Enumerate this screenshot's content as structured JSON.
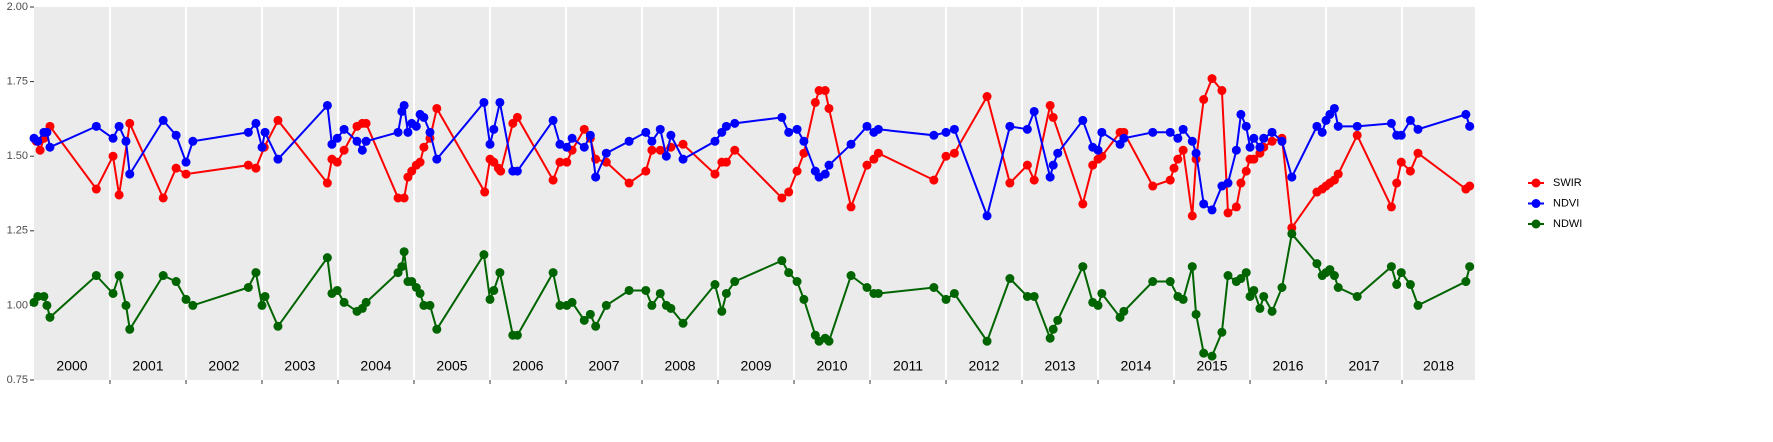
{
  "chart_data": {
    "type": "line",
    "xlim": [
      2000,
      2018.96
    ],
    "xticks": [
      2001,
      2002,
      2003,
      2004,
      2005,
      2006,
      2007,
      2008,
      2009,
      2010,
      2011,
      2012,
      2013,
      2014,
      2015,
      2016,
      2017,
      2018
    ],
    "year_labels": [
      "2000",
      "2001",
      "2002",
      "2003",
      "2004",
      "2005",
      "2006",
      "2007",
      "2008",
      "2009",
      "2010",
      "2011",
      "2012",
      "2013",
      "2014",
      "2015",
      "2016",
      "2017",
      "2018"
    ],
    "ylim": [
      0.75,
      2.0
    ],
    "yticks": [
      {
        "value": 0.75,
        "label": "0.75"
      },
      {
        "value": 1.0,
        "label": "1.00"
      },
      {
        "value": 1.25,
        "label": "1.25"
      },
      {
        "value": 1.5,
        "label": "1.50"
      },
      {
        "value": 1.75,
        "label": "1.75"
      },
      {
        "value": 2.0,
        "label": "2.00"
      }
    ],
    "grid_x": true,
    "legend": "right",
    "series": [
      {
        "name": "SWIR",
        "color": "#ff0000",
        "x": [
          2000.03,
          2000.08,
          2000.13,
          2000.21,
          2000.82,
          2001.04,
          2001.12,
          2001.26,
          2001.7,
          2001.87,
          2002.0,
          2002.82,
          2002.92,
          2003.03,
          2003.21,
          2003.86,
          2003.92,
          2003.99,
          2004.08,
          2004.25,
          2004.32,
          2004.37,
          2004.79,
          2004.87,
          2004.92,
          2004.97,
          2005.03,
          2005.08,
          2005.13,
          2005.21,
          2005.3,
          2005.93,
          2006.0,
          2006.05,
          2006.11,
          2006.14,
          2006.3,
          2006.36,
          2006.83,
          2006.92,
          2007.01,
          2007.08,
          2007.24,
          2007.32,
          2007.39,
          2007.53,
          2007.83,
          2008.05,
          2008.13,
          2008.24,
          2008.38,
          2008.54,
          2008.96,
          2009.05,
          2009.11,
          2009.22,
          2009.84,
          2009.93,
          2010.04,
          2010.13,
          2010.28,
          2010.33,
          2010.41,
          2010.46,
          2010.75,
          2010.96,
          2011.05,
          2011.11,
          2011.84,
          2012.0,
          2012.11,
          2012.54,
          2012.84,
          2013.07,
          2013.16,
          2013.37,
          2013.41,
          2013.8,
          2013.93,
          2014.0,
          2014.05,
          2014.29,
          2014.34,
          2014.72,
          2014.95,
          2015.0,
          2015.05,
          2015.12,
          2015.24,
          2015.29,
          2015.39,
          2015.5,
          2015.63,
          2015.71,
          2015.82,
          2015.88,
          2015.95,
          2016.0,
          2016.05,
          2016.13,
          2016.18,
          2016.29,
          2016.42,
          2016.55,
          2016.88,
          2016.95,
          2017.0,
          2017.05,
          2017.11,
          2017.16,
          2017.41,
          2017.86,
          2017.93,
          2017.99,
          2018.11,
          2018.21,
          2018.84,
          2018.89
        ],
        "values": [
          1.55,
          1.52,
          1.56,
          1.6,
          1.39,
          1.5,
          1.37,
          1.61,
          1.36,
          1.46,
          1.44,
          1.47,
          1.46,
          1.53,
          1.62,
          1.41,
          1.49,
          1.48,
          1.52,
          1.6,
          1.61,
          1.61,
          1.36,
          1.36,
          1.43,
          1.45,
          1.47,
          1.48,
          1.53,
          1.56,
          1.66,
          1.38,
          1.49,
          1.48,
          1.46,
          1.45,
          1.61,
          1.63,
          1.42,
          1.48,
          1.48,
          1.52,
          1.59,
          1.56,
          1.49,
          1.48,
          1.41,
          1.45,
          1.52,
          1.52,
          1.53,
          1.54,
          1.44,
          1.48,
          1.48,
          1.52,
          1.36,
          1.38,
          1.45,
          1.51,
          1.68,
          1.72,
          1.72,
          1.66,
          1.33,
          1.47,
          1.49,
          1.51,
          1.42,
          1.5,
          1.51,
          1.7,
          1.41,
          1.47,
          1.42,
          1.67,
          1.63,
          1.34,
          1.47,
          1.49,
          1.5,
          1.58,
          1.58,
          1.4,
          1.42,
          1.46,
          1.49,
          1.52,
          1.3,
          1.49,
          1.69,
          1.76,
          1.72,
          1.31,
          1.33,
          1.41,
          1.45,
          1.49,
          1.49,
          1.51,
          1.53,
          1.55,
          1.56,
          1.26,
          1.38,
          1.39,
          1.4,
          1.41,
          1.42,
          1.44,
          1.57,
          1.33,
          1.41,
          1.48,
          1.45,
          1.51,
          1.39,
          1.4
        ]
      },
      {
        "name": "NDVI",
        "color": "#0000ff",
        "x": [
          2000.0,
          2000.05,
          2000.13,
          2000.17,
          2000.21,
          2000.82,
          2001.04,
          2001.12,
          2001.21,
          2001.26,
          2001.7,
          2001.87,
          2002.0,
          2002.09,
          2002.82,
          2002.92,
          2003.0,
          2003.04,
          2003.21,
          2003.86,
          2003.92,
          2003.99,
          2004.08,
          2004.25,
          2004.32,
          2004.37,
          2004.79,
          2004.84,
          2004.87,
          2004.92,
          2004.97,
          2005.03,
          2005.08,
          2005.13,
          2005.21,
          2005.3,
          2005.92,
          2006.0,
          2006.05,
          2006.13,
          2006.3,
          2006.36,
          2006.83,
          2006.92,
          2007.01,
          2007.08,
          2007.24,
          2007.32,
          2007.39,
          2007.53,
          2007.83,
          2008.05,
          2008.13,
          2008.24,
          2008.32,
          2008.38,
          2008.54,
          2008.96,
          2009.05,
          2009.11,
          2009.22,
          2009.84,
          2009.93,
          2010.04,
          2010.13,
          2010.28,
          2010.33,
          2010.41,
          2010.46,
          2010.75,
          2010.96,
          2011.05,
          2011.11,
          2011.84,
          2012.0,
          2012.11,
          2012.54,
          2012.84,
          2013.07,
          2013.16,
          2013.37,
          2013.41,
          2013.47,
          2013.8,
          2013.93,
          2014.0,
          2014.05,
          2014.29,
          2014.34,
          2014.72,
          2014.95,
          2015.05,
          2015.12,
          2015.24,
          2015.29,
          2015.39,
          2015.5,
          2015.63,
          2015.71,
          2015.82,
          2015.88,
          2015.95,
          2016.0,
          2016.05,
          2016.13,
          2016.18,
          2016.29,
          2016.42,
          2016.55,
          2016.88,
          2016.95,
          2017.0,
          2017.05,
          2017.11,
          2017.16,
          2017.41,
          2017.86,
          2017.93,
          2017.99,
          2018.11,
          2018.21,
          2018.84,
          2018.89
        ],
        "values": [
          1.56,
          1.55,
          1.58,
          1.58,
          1.53,
          1.6,
          1.56,
          1.6,
          1.55,
          1.44,
          1.62,
          1.57,
          1.48,
          1.55,
          1.58,
          1.61,
          1.53,
          1.58,
          1.49,
          1.67,
          1.54,
          1.56,
          1.59,
          1.55,
          1.52,
          1.55,
          1.58,
          1.65,
          1.67,
          1.58,
          1.61,
          1.6,
          1.64,
          1.63,
          1.58,
          1.49,
          1.68,
          1.54,
          1.59,
          1.68,
          1.45,
          1.45,
          1.62,
          1.54,
          1.53,
          1.56,
          1.53,
          1.57,
          1.43,
          1.51,
          1.55,
          1.58,
          1.55,
          1.59,
          1.5,
          1.57,
          1.49,
          1.55,
          1.58,
          1.6,
          1.61,
          1.63,
          1.58,
          1.59,
          1.55,
          1.45,
          1.43,
          1.44,
          1.47,
          1.54,
          1.6,
          1.58,
          1.59,
          1.57,
          1.58,
          1.59,
          1.3,
          1.6,
          1.59,
          1.65,
          1.43,
          1.47,
          1.51,
          1.62,
          1.53,
          1.52,
          1.58,
          1.54,
          1.56,
          1.58,
          1.58,
          1.56,
          1.59,
          1.55,
          1.51,
          1.34,
          1.32,
          1.4,
          1.41,
          1.52,
          1.64,
          1.6,
          1.53,
          1.56,
          1.53,
          1.56,
          1.58,
          1.55,
          1.43,
          1.6,
          1.58,
          1.62,
          1.64,
          1.66,
          1.6,
          1.6,
          1.61,
          1.57,
          1.57,
          1.62,
          1.59,
          1.64,
          1.6
        ]
      },
      {
        "name": "NDWI",
        "color": "#006400",
        "x": [
          2000.0,
          2000.05,
          2000.13,
          2000.17,
          2000.21,
          2000.82,
          2001.04,
          2001.12,
          2001.21,
          2001.26,
          2001.7,
          2001.87,
          2002.0,
          2002.09,
          2002.82,
          2002.92,
          2003.0,
          2003.04,
          2003.21,
          2003.86,
          2003.92,
          2003.99,
          2004.08,
          2004.25,
          2004.32,
          2004.37,
          2004.79,
          2004.84,
          2004.87,
          2004.92,
          2004.97,
          2005.03,
          2005.08,
          2005.13,
          2005.21,
          2005.3,
          2005.92,
          2006.0,
          2006.05,
          2006.13,
          2006.3,
          2006.36,
          2006.83,
          2006.92,
          2007.01,
          2007.08,
          2007.24,
          2007.32,
          2007.39,
          2007.53,
          2007.83,
          2008.05,
          2008.13,
          2008.24,
          2008.32,
          2008.38,
          2008.54,
          2008.96,
          2009.05,
          2009.11,
          2009.22,
          2009.84,
          2009.93,
          2010.04,
          2010.13,
          2010.28,
          2010.33,
          2010.41,
          2010.46,
          2010.75,
          2010.96,
          2011.05,
          2011.11,
          2011.84,
          2012.0,
          2012.11,
          2012.54,
          2012.84,
          2013.07,
          2013.16,
          2013.37,
          2013.41,
          2013.47,
          2013.8,
          2013.93,
          2014.0,
          2014.05,
          2014.29,
          2014.34,
          2014.72,
          2014.95,
          2015.05,
          2015.12,
          2015.24,
          2015.29,
          2015.39,
          2015.5,
          2015.63,
          2015.71,
          2015.82,
          2015.88,
          2015.95,
          2016.0,
          2016.05,
          2016.13,
          2016.18,
          2016.29,
          2016.42,
          2016.55,
          2016.88,
          2016.95,
          2017.0,
          2017.05,
          2017.11,
          2017.16,
          2017.41,
          2017.86,
          2017.93,
          2017.99,
          2018.11,
          2018.21,
          2018.84,
          2018.89
        ],
        "values": [
          1.01,
          1.03,
          1.03,
          1.0,
          0.96,
          1.1,
          1.04,
          1.1,
          1.0,
          0.92,
          1.1,
          1.08,
          1.02,
          1.0,
          1.06,
          1.11,
          1.0,
          1.03,
          0.93,
          1.16,
          1.04,
          1.05,
          1.01,
          0.98,
          0.99,
          1.01,
          1.11,
          1.13,
          1.18,
          1.08,
          1.08,
          1.06,
          1.04,
          1.0,
          1.0,
          0.92,
          1.17,
          1.02,
          1.05,
          1.11,
          0.9,
          0.9,
          1.11,
          1.0,
          1.0,
          1.01,
          0.95,
          0.97,
          0.93,
          1.0,
          1.05,
          1.05,
          1.0,
          1.04,
          1.0,
          0.99,
          0.94,
          1.07,
          0.98,
          1.04,
          1.08,
          1.15,
          1.11,
          1.08,
          1.02,
          0.9,
          0.88,
          0.89,
          0.88,
          1.1,
          1.06,
          1.04,
          1.04,
          1.06,
          1.02,
          1.04,
          0.88,
          1.09,
          1.03,
          1.03,
          0.89,
          0.92,
          0.95,
          1.13,
          1.01,
          1.0,
          1.04,
          0.96,
          0.98,
          1.08,
          1.08,
          1.03,
          1.02,
          1.13,
          0.97,
          0.84,
          0.83,
          0.91,
          1.1,
          1.08,
          1.09,
          1.11,
          1.03,
          1.05,
          0.99,
          1.03,
          0.98,
          1.06,
          1.24,
          1.14,
          1.1,
          1.11,
          1.12,
          1.1,
          1.06,
          1.03,
          1.13,
          1.07,
          1.11,
          1.07,
          1.0,
          1.08,
          1.13
        ]
      }
    ]
  }
}
